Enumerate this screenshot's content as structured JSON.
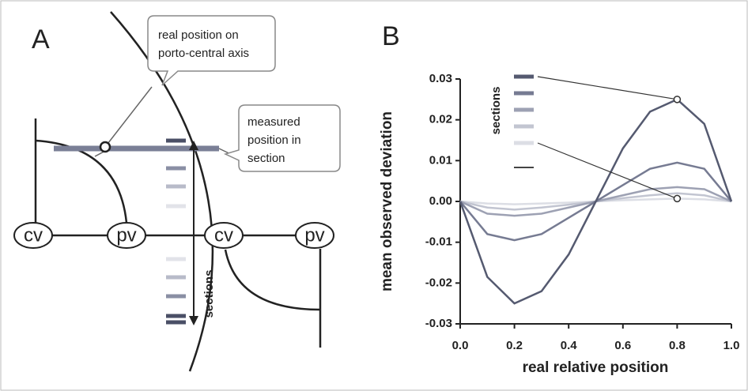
{
  "panel_a": {
    "label": "A",
    "callout_position": [
      "real position on",
      "porto-central axis"
    ],
    "callout_measured": [
      "measured",
      "position in",
      "section"
    ],
    "nodes": [
      "cv",
      "pv",
      "cv",
      "pv"
    ],
    "sections_label": "sections"
  },
  "chart_data": {
    "type": "line",
    "label": "B",
    "xlabel": "real relative position",
    "ylabel": "mean observed deviation",
    "legend_title": "sections",
    "xlim": [
      0,
      1
    ],
    "ylim": [
      -0.03,
      0.03
    ],
    "xticks": [
      {
        "value": 0,
        "label": "0.0"
      },
      0.2,
      0.4,
      0.6,
      0.8,
      {
        "value": 1,
        "label": "1.0"
      }
    ],
    "yticks": [
      -0.03,
      -0.02,
      -0.01,
      {
        "value": 0,
        "label": "0.00"
      },
      0.01,
      0.02,
      0.03
    ],
    "x": [
      0,
      0.1,
      0.2,
      0.3,
      0.4,
      0.5,
      0.6,
      0.7,
      0.8,
      0.9,
      1
    ],
    "series": [
      {
        "color": "#555a70",
        "values": [
          0,
          -0.0185,
          -0.025,
          -0.022,
          -0.013,
          0,
          0.013,
          0.022,
          0.025,
          0.019,
          0
        ]
      },
      {
        "color": "#767b92",
        "values": [
          0,
          -0.008,
          -0.0095,
          -0.008,
          -0.004,
          0,
          0.004,
          0.008,
          0.0095,
          0.008,
          0
        ]
      },
      {
        "color": "#9da1b3",
        "values": [
          0,
          -0.003,
          -0.0035,
          -0.003,
          -0.0015,
          0,
          0.0015,
          0.003,
          0.0035,
          0.003,
          0
        ]
      },
      {
        "color": "#c2c5d1",
        "values": [
          0,
          -0.0015,
          -0.002,
          -0.0015,
          -0.0008,
          0,
          0.0008,
          0.0015,
          0.002,
          0.0015,
          0
        ]
      },
      {
        "color": "#dcdee5",
        "values": [
          0,
          -0.0005,
          -0.0007,
          -0.0005,
          -0.0003,
          0,
          0.0003,
          0.0005,
          0.0007,
          0.0005,
          0
        ]
      }
    ]
  }
}
